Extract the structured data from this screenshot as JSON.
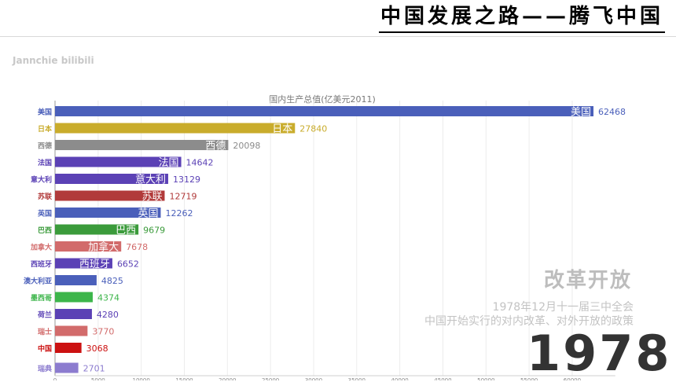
{
  "header": {
    "title": "中国发展之路——腾飞中国"
  },
  "watermark": "Jannchie bilibili",
  "overlay": {
    "event_title": "改革开放",
    "event_line1": "1978年12月十一届三中全会",
    "event_line2": "中国开始实行的对内改革、对外开放的政策",
    "year": "1978"
  },
  "chart_data": {
    "type": "bar",
    "title": "国内生产总值(亿美元2011)",
    "orientation": "horizontal",
    "categories": [
      "美国",
      "日本",
      "西德",
      "法国",
      "意大利",
      "苏联",
      "英国",
      "巴西",
      "加拿大",
      "西班牙",
      "澳大利亚",
      "墨西哥",
      "荷兰",
      "瑞士",
      "中国",
      "瑞典"
    ],
    "values": [
      62468,
      27840,
      20098,
      14642,
      13129,
      12719,
      12262,
      9679,
      7678,
      6652,
      4825,
      4374,
      4280,
      3770,
      3068,
      2701
    ],
    "colors": [
      "#4a5fba",
      "#c9ac2c",
      "#8c8c8c",
      "#5b41b5",
      "#5b41b5",
      "#b13a3a",
      "#4a5fba",
      "#3b9b3b",
      "#d26b6b",
      "#5b41b5",
      "#4a5fba",
      "#3cb54a",
      "#5b41b5",
      "#d26b6b",
      "#cc1111",
      "#8c7ccf"
    ],
    "inner_labels": [
      "美国",
      "日本",
      "西德",
      "法国",
      "意大利",
      "苏联",
      "英国",
      "巴西",
      "加拿大",
      "西班牙",
      "",
      "",
      "",
      "",
      "",
      ""
    ],
    "xlim": [
      0,
      65000
    ],
    "xticks": [
      "0",
      "5000",
      "10000",
      "15000",
      "20000",
      "25000",
      "30000",
      "35000",
      "40000",
      "45000",
      "50000",
      "55000",
      "60000"
    ],
    "grid": true
  }
}
